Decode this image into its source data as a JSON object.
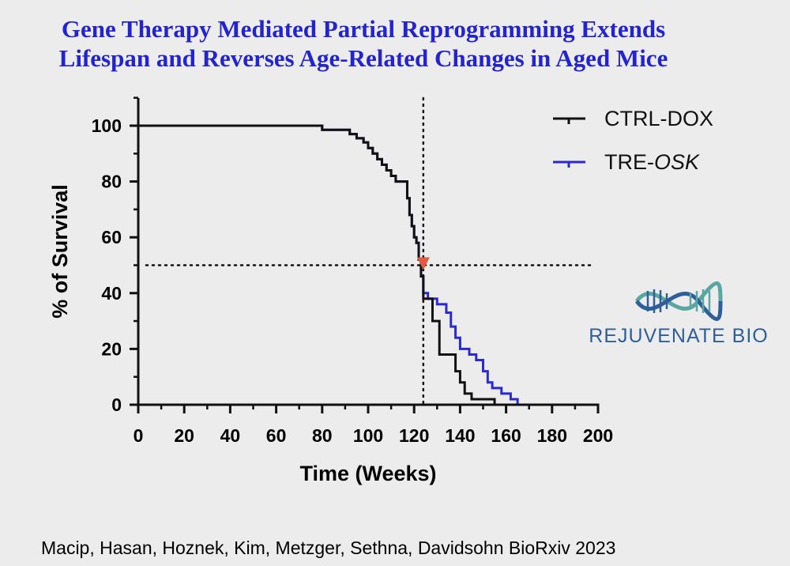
{
  "slide": {
    "title_line1": "Gene Therapy Mediated Partial Reprogramming Extends",
    "title_line2": "Lifespan and Reverses Age-Related Changes in Aged Mice",
    "citation": "Macip, Hasan, Hoznek, Kim, Metzger, Sethna, Davidsohn BioRxiv 2023",
    "logo_text": "REJUVENATE BIO",
    "title_color": "#2323d0",
    "logo_color": "#2f5f9a"
  },
  "chart_data": {
    "type": "line",
    "subtype": "kaplan-meier-step",
    "xlabel": "Time (Weeks)",
    "ylabel": "% of Survival",
    "xlim": [
      0,
      200
    ],
    "ylim": [
      0,
      110
    ],
    "xticks": [
      0,
      20,
      40,
      60,
      80,
      100,
      120,
      140,
      160,
      180,
      200
    ],
    "yticks": [
      0,
      20,
      40,
      60,
      80,
      100
    ],
    "reference_lines": {
      "x": 124,
      "y": 50,
      "style": "dotted"
    },
    "marker": {
      "x": 124,
      "y": 50,
      "shape": "triangle-down",
      "color": "#e05a44"
    },
    "legend_position": "top-right",
    "series": [
      {
        "name": "CTRL-DOX",
        "name_prefix": "CTRL-DOX",
        "name_suffix": "",
        "color": "#111111",
        "x": [
          0,
          80,
          92,
          95,
          98,
          100,
          102,
          104,
          106,
          108,
          110,
          112,
          117,
          118,
          119,
          120,
          121,
          122,
          123,
          124,
          128,
          131,
          138,
          140,
          142,
          145,
          155
        ],
        "y": [
          100,
          98.5,
          97,
          95.5,
          94,
          92,
          90,
          88,
          86,
          84,
          82,
          80,
          74,
          68,
          64,
          60,
          58,
          52,
          46,
          38,
          30,
          18,
          12,
          8,
          4,
          2,
          0
        ]
      },
      {
        "name": "TRE-OSK",
        "name_prefix": "TRE-",
        "name_suffix": "OSK",
        "color": "#2a2ad0",
        "x": [
          0,
          80,
          92,
          95,
          98,
          100,
          102,
          104,
          106,
          108,
          110,
          112,
          117,
          118,
          119,
          120,
          121,
          122,
          123,
          124,
          126,
          130,
          134,
          136,
          138,
          140,
          144,
          147,
          150,
          152,
          154,
          158,
          162,
          165
        ],
        "y": [
          100,
          98.5,
          97,
          95.5,
          94,
          92,
          90,
          88,
          86,
          84,
          82,
          80,
          74,
          68,
          64,
          60,
          58,
          52,
          46,
          40,
          38,
          36,
          33,
          28,
          24,
          20,
          18,
          16,
          12,
          8,
          6,
          4,
          2,
          0
        ]
      }
    ]
  }
}
